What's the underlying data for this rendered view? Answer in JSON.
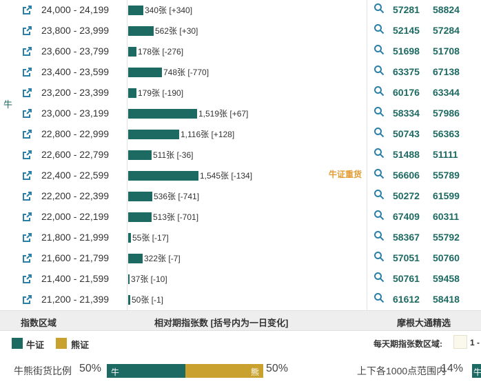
{
  "colors": {
    "bull": "#1d6a62",
    "bear": "#c9a12e",
    "link": "#2a7fa8",
    "highlight": "#e39b32"
  },
  "icons": {
    "row_link": "external-link-icon",
    "row_search": "search-icon"
  },
  "side_label": "牛",
  "heavy_label": "牛证重货",
  "rows": [
    {
      "range": "24,000 - 24,199",
      "count": 340,
      "count_label": "340张 [+340]",
      "code1": "57281",
      "code2": "58824"
    },
    {
      "range": "23,800 - 23,999",
      "count": 562,
      "count_label": "562张 [+30]",
      "code1": "52145",
      "code2": "57284"
    },
    {
      "range": "23,600 - 23,799",
      "count": 178,
      "count_label": "178张 [-276]",
      "code1": "51698",
      "code2": "51708"
    },
    {
      "range": "23,400 - 23,599",
      "count": 748,
      "count_label": "748张 [-770]",
      "code1": "63375",
      "code2": "67138"
    },
    {
      "range": "23,200 - 23,399",
      "count": 179,
      "count_label": "179张 [-190]",
      "code1": "60176",
      "code2": "63344"
    },
    {
      "range": "23,000 - 23,199",
      "count": 1519,
      "count_label": "1,519张 [+67]",
      "code1": "58334",
      "code2": "57986"
    },
    {
      "range": "22,800 - 22,999",
      "count": 1116,
      "count_label": "1,116张 [+128]",
      "code1": "50743",
      "code2": "56363"
    },
    {
      "range": "22,600 - 22,799",
      "count": 511,
      "count_label": "511张 [-36]",
      "code1": "51488",
      "code2": "51111"
    },
    {
      "range": "22,400 - 22,599",
      "count": 1545,
      "count_label": "1,545张 [-134]",
      "code1": "56606",
      "code2": "55789"
    },
    {
      "range": "22,200 - 22,399",
      "count": 536,
      "count_label": "536张 [-741]",
      "code1": "50272",
      "code2": "61599"
    },
    {
      "range": "22,000 - 22,199",
      "count": 513,
      "count_label": "513张 [-701]",
      "code1": "67409",
      "code2": "60311"
    },
    {
      "range": "21,800 - 21,999",
      "count": 55,
      "count_label": "55张 [-17]",
      "code1": "58367",
      "code2": "55792"
    },
    {
      "range": "21,600 - 21,799",
      "count": 322,
      "count_label": "322张 [-7]",
      "code1": "57051",
      "code2": "50760"
    },
    {
      "range": "21,400 - 21,599",
      "count": 37,
      "count_label": "37张 [-10]",
      "code1": "50761",
      "code2": "59458"
    },
    {
      "range": "21,200 - 21,399",
      "count": 50,
      "count_label": "50张 [-1]",
      "code1": "61612",
      "code2": "58418"
    }
  ],
  "header": {
    "index_range": "指数区域",
    "relative_count": "相对期指张数 [括号内为一日变化]",
    "picks": "摩根大通精选"
  },
  "legend": {
    "bull": "牛证",
    "bear": "熊证",
    "daily_label": "每天期指张数区域:",
    "daily_value": "1 -"
  },
  "ratio": {
    "label": "牛熊街货比例",
    "bull_pct_text": "50%",
    "bear_pct_text": "50%",
    "bull_fraction": 0.5,
    "bull_char": "牛",
    "bear_char": "熊",
    "range_label": "上下各1000点范围内",
    "range_pct_text": "14%",
    "range_bar_char": "牛"
  }
}
